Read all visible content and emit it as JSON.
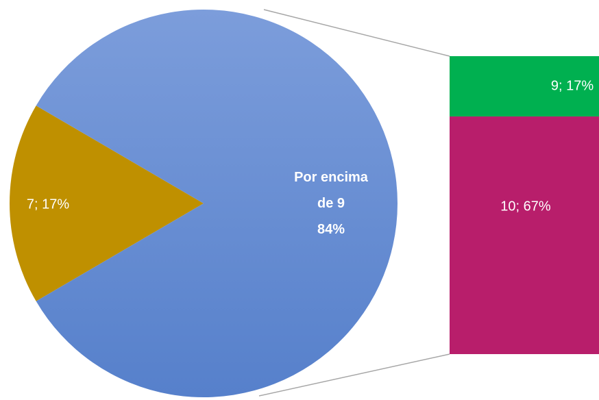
{
  "chart_data": {
    "type": "pie-of-bar",
    "pie": {
      "categories": [
        null,
        "Por encima de 9"
      ],
      "values": [
        17,
        84
      ],
      "value_labels": [
        "7; 17%",
        "84%"
      ],
      "colors": [
        "#bf9000",
        "#6a8fd6"
      ]
    },
    "bar": {
      "values": [
        67,
        17
      ],
      "value_labels": [
        "10; 67%",
        "9; 17%"
      ],
      "colors": [
        "#b81e6b",
        "#00b050"
      ]
    }
  }
}
